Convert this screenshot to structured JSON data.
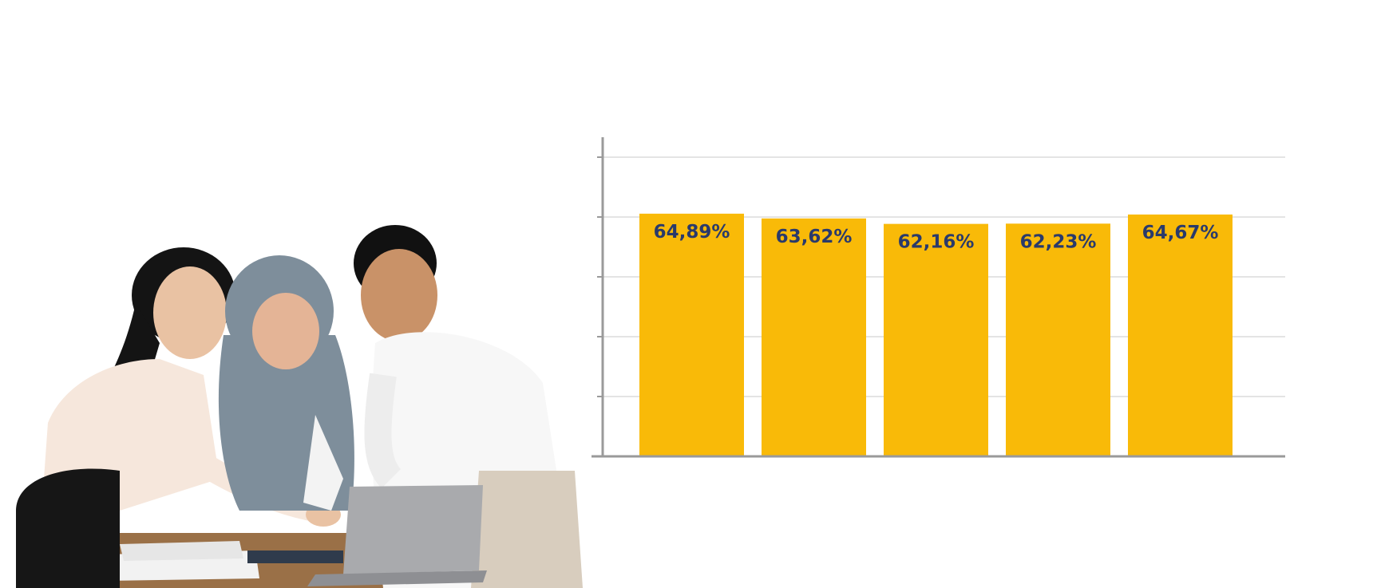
{
  "colors": {
    "bar": "#F9BA08",
    "label": "#2A3A6B",
    "grid": "#E4E4E4",
    "axis": "#9A9A9A"
  },
  "chart_data": {
    "type": "bar",
    "categories": [
      "",
      "",
      "",
      "",
      ""
    ],
    "values": [
      64.89,
      63.62,
      62.16,
      62.23,
      64.67
    ],
    "data_labels": [
      "64,89%",
      "63,62%",
      "62,16%",
      "62,23%",
      "64,67%"
    ],
    "unit": "%",
    "title": "",
    "xlabel": "",
    "ylabel": "",
    "ylim": [
      0,
      80
    ],
    "y_ticks": [
      0,
      16,
      32,
      48,
      64,
      80
    ],
    "grid": true,
    "legend": "none",
    "y_tick_labels_visible": false
  },
  "photo": {
    "icon": "team-with-laptop-photo-icon"
  }
}
